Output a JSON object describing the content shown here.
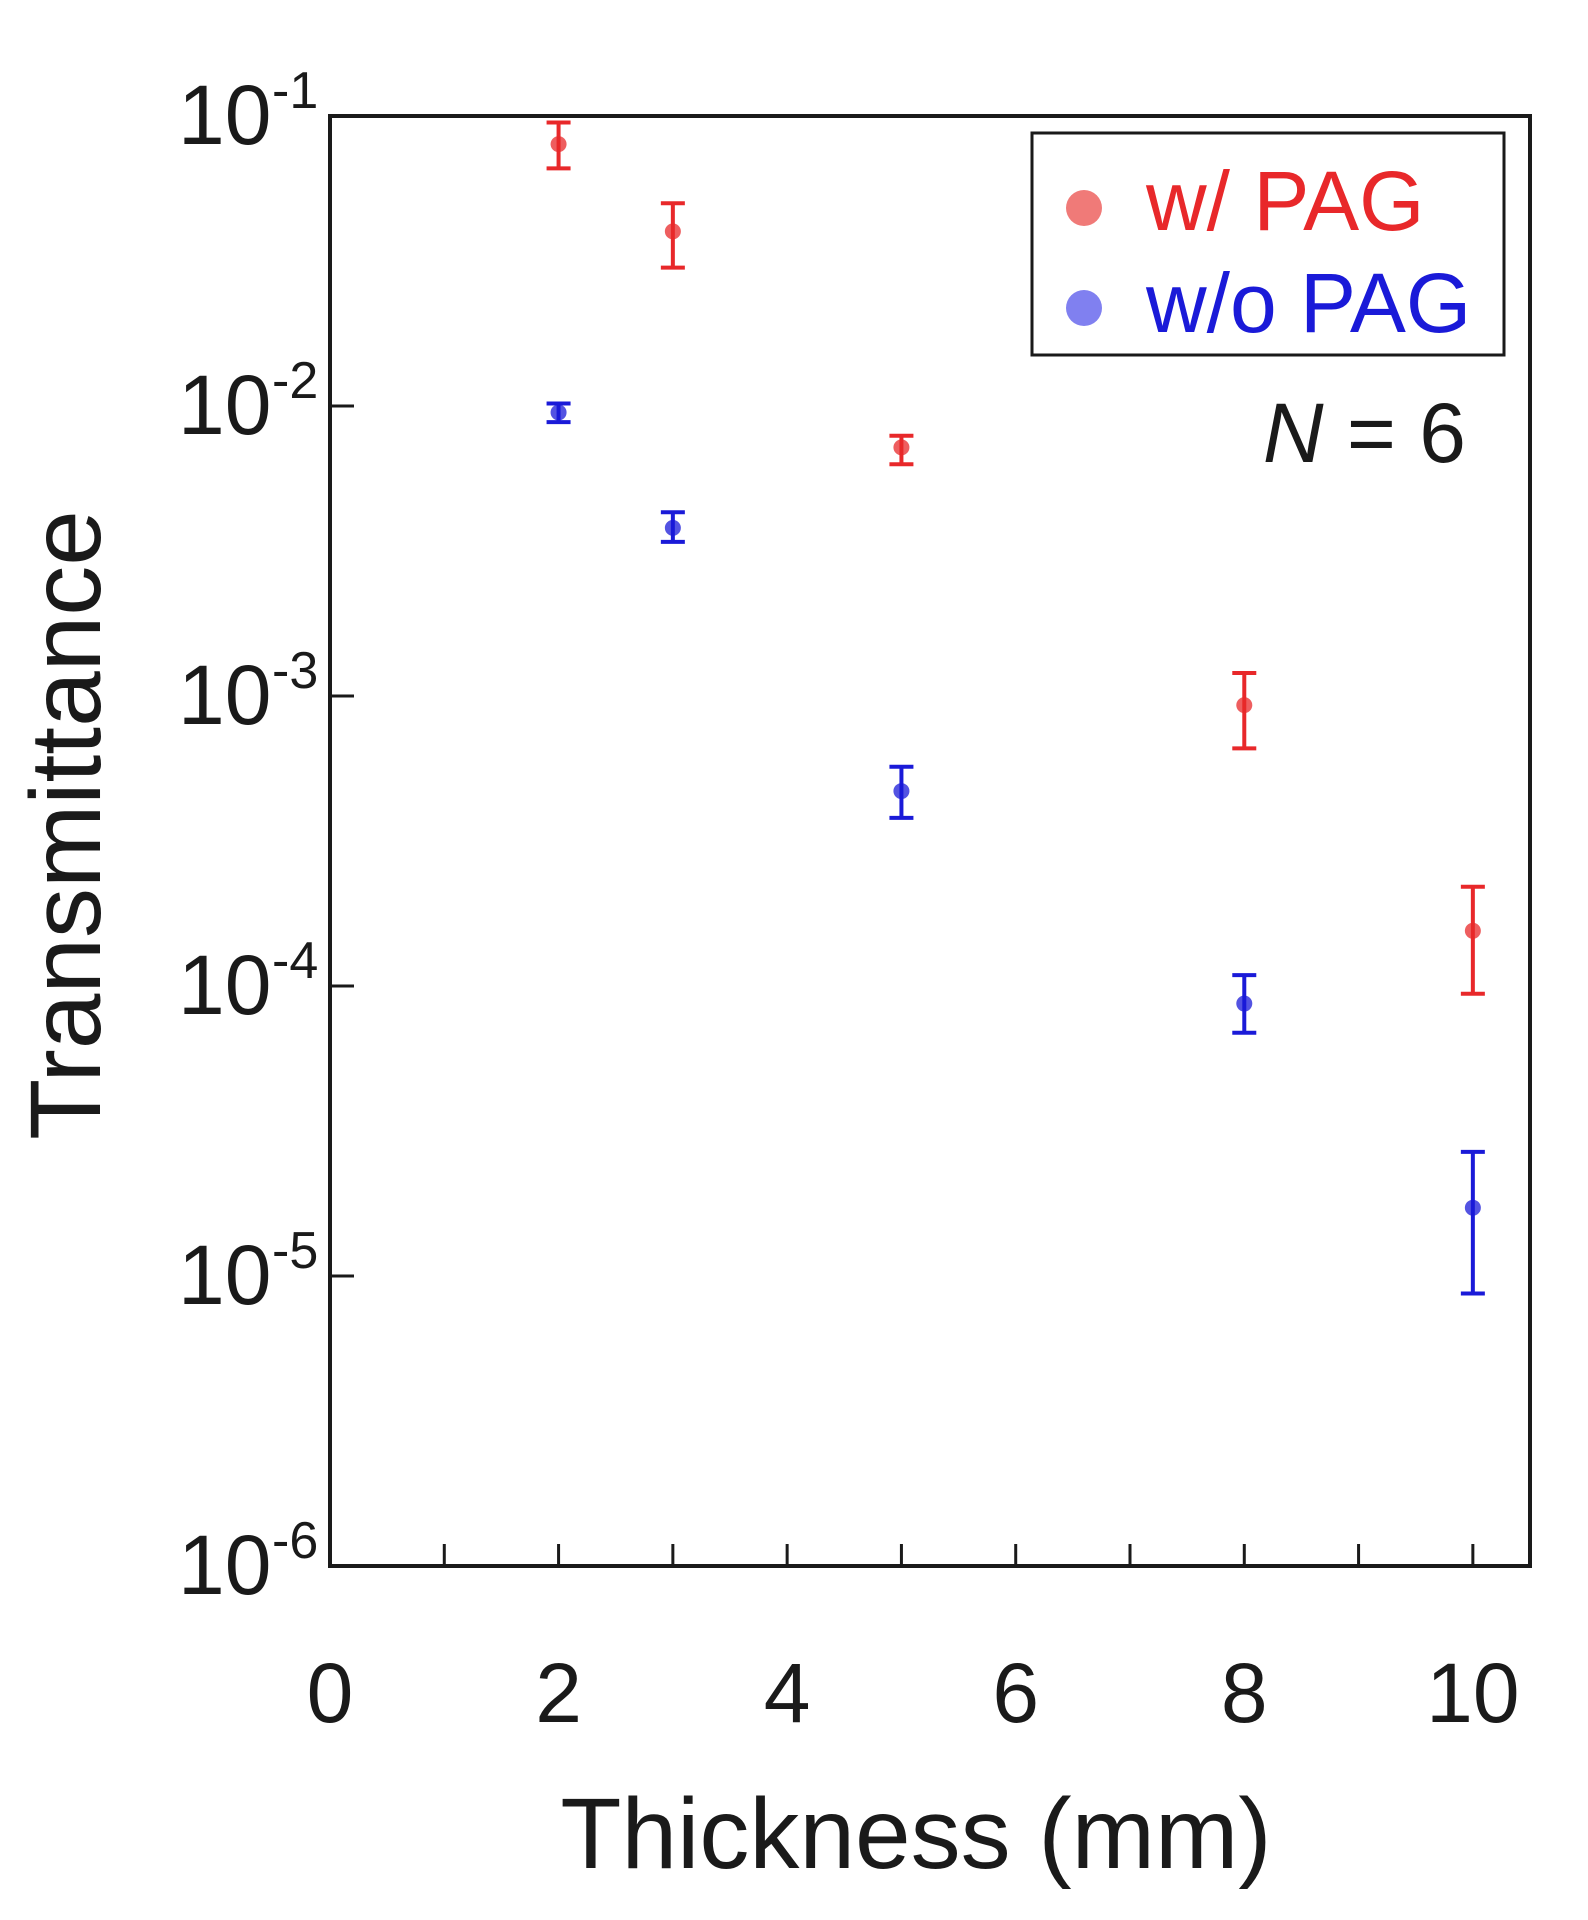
{
  "chart_data": {
    "type": "scatter",
    "xlabel": "Thickness (mm)",
    "ylabel": "Transmittance",
    "xlim": [
      0,
      10.5
    ],
    "ylim": [
      1e-06,
      0.1
    ],
    "yscale": "log",
    "grid": false,
    "legend_position": "top-right",
    "x_ticks": [
      "0",
      "2",
      "4",
      "6",
      "8",
      "10"
    ],
    "y_ticks": [
      {
        "base": "10",
        "exp": "-1",
        "value": 0.1
      },
      {
        "base": "10",
        "exp": "-2",
        "value": 0.01
      },
      {
        "base": "10",
        "exp": "-3",
        "value": 0.001
      },
      {
        "base": "10",
        "exp": "-4",
        "value": 0.0001
      },
      {
        "base": "10",
        "exp": "-5",
        "value": 1e-05
      },
      {
        "base": "10",
        "exp": "-6",
        "value": 1e-06
      }
    ],
    "series": [
      {
        "name": "w/ PAG",
        "color": "#e8282a",
        "legend_marker_color": "#f07a78",
        "points": [
          {
            "x": 2,
            "y": 0.08,
            "y_low": 0.066,
            "y_high": 0.095
          },
          {
            "x": 3,
            "y": 0.04,
            "y_low": 0.03,
            "y_high": 0.05
          },
          {
            "x": 5,
            "y": 0.0072,
            "y_low": 0.0063,
            "y_high": 0.0079
          },
          {
            "x": 8,
            "y": 0.00093,
            "y_low": 0.00066,
            "y_high": 0.0012
          },
          {
            "x": 10,
            "y": 0.000155,
            "y_low": 9.4e-05,
            "y_high": 0.00022
          }
        ]
      },
      {
        "name": "w/o PAG",
        "color": "#1a1ad8",
        "legend_marker_color": "#8080f0",
        "points": [
          {
            "x": 2,
            "y": 0.0095,
            "y_low": 0.0088,
            "y_high": 0.0102
          },
          {
            "x": 3,
            "y": 0.0038,
            "y_low": 0.0034,
            "y_high": 0.0043
          },
          {
            "x": 5,
            "y": 0.00047,
            "y_low": 0.00038,
            "y_high": 0.00057
          },
          {
            "x": 8,
            "y": 8.7e-05,
            "y_low": 6.9e-05,
            "y_high": 0.000109
          },
          {
            "x": 10,
            "y": 1.72e-05,
            "y_low": 8.7e-06,
            "y_high": 2.68e-05
          }
        ]
      }
    ],
    "annotation": {
      "italic": "N",
      "rest": " = 6"
    }
  }
}
